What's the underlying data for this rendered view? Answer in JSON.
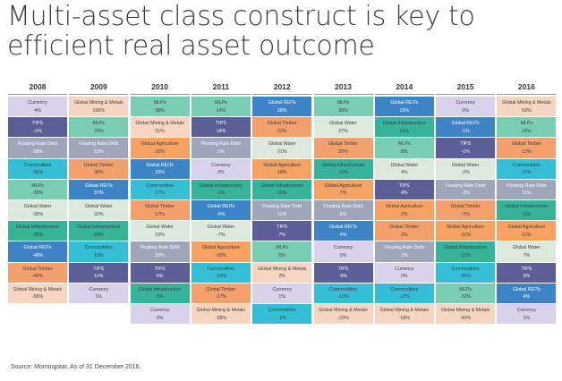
{
  "title": "Multi-asset class construct is key to efficient real asset outcome",
  "source": "Source: Morningstar. As of 31 December 2016.",
  "palette": {
    "Currency": "#d8d3ea",
    "Global Mining & Metals": "#f6d6c0",
    "TIPS": "#5c5f97",
    "Floating Rate Debt": "#9fa6b9",
    "Commodities": "#35bfd6",
    "MLPs": "#78cdb3",
    "Global Water": "#dde9dc",
    "Global Infrastructure": "#35b49a",
    "Global REITs": "#3c84c5",
    "Global Timber": "#f3a06d",
    "Global Agriculture": "#f5a262"
  },
  "chart_data": {
    "type": "table",
    "title": "Multi-asset class construct is key to efficient real asset outcome",
    "years": [
      "2008",
      "2009",
      "2010",
      "2011",
      "2012",
      "2013",
      "2014",
      "2015",
      "2016"
    ],
    "columns": [
      {
        "year": "2008",
        "cells": [
          {
            "name": "Currency",
            "value": "4%"
          },
          {
            "name": "TIPS",
            "value": "-2%"
          },
          {
            "name": "Floating Rate Debt",
            "value": "-28%"
          },
          {
            "name": "Commodities",
            "value": "-36%"
          },
          {
            "name": "MLPs",
            "value": "-39%"
          },
          {
            "name": "Global Water",
            "value": "-39%"
          },
          {
            "name": "Global Infrastructure",
            "value": "-39%"
          },
          {
            "name": "Global REITs",
            "value": "-48%"
          },
          {
            "name": "Global Timber",
            "value": "-49%"
          },
          {
            "name": "Global Mining & Metals",
            "value": "-58%"
          }
        ]
      },
      {
        "year": "2009",
        "cells": [
          {
            "name": "Global Mining & Metals",
            "value": "106%"
          },
          {
            "name": "MLPs",
            "value": "78%"
          },
          {
            "name": "Floating Rate Debt",
            "value": "52%"
          },
          {
            "name": "Global Timber",
            "value": "38%"
          },
          {
            "name": "Global REITs",
            "value": "37%"
          },
          {
            "name": "Global Water",
            "value": "32%"
          },
          {
            "name": "Global Infrastructure",
            "value": "24%"
          },
          {
            "name": "Commodities",
            "value": "19%"
          },
          {
            "name": "TIPS",
            "value": "11%"
          },
          {
            "name": "Currency",
            "value": "1%"
          }
        ]
      },
      {
        "year": "2010",
        "cells": [
          {
            "name": "MLPs",
            "value": "38%"
          },
          {
            "name": "Global Mining & Metals",
            "value": "31%"
          },
          {
            "name": "Global Agriculture",
            "value": "22%"
          },
          {
            "name": "Global REITs",
            "value": "20%"
          },
          {
            "name": "Commodities",
            "value": "17%"
          },
          {
            "name": "Global Timber",
            "value": "17%"
          },
          {
            "name": "Global Water",
            "value": "15%"
          },
          {
            "name": "Floating Rate Debt",
            "value": "10%"
          },
          {
            "name": "TIPS",
            "value": "6%"
          },
          {
            "name": "Global Infrastructure",
            "value": "5%"
          },
          {
            "name": "Currency",
            "value": "0%"
          }
        ]
      },
      {
        "year": "2011",
        "cells": [
          {
            "name": "MLPs",
            "value": "14%"
          },
          {
            "name": "TIPS",
            "value": "14%"
          },
          {
            "name": "Floating Rate Debt",
            "value": "1%"
          },
          {
            "name": "Currency",
            "value": "0%"
          },
          {
            "name": "Global Infrastructure",
            "value": "-1%"
          },
          {
            "name": "Global REITs",
            "value": "-6%"
          },
          {
            "name": "Global Water",
            "value": "-7%"
          },
          {
            "name": "Global Agriculture",
            "value": "-10%"
          },
          {
            "name": "Commodities",
            "value": "-13%"
          },
          {
            "name": "Global Timber",
            "value": "-17%"
          },
          {
            "name": "Global Mining & Metals",
            "value": "-28%"
          }
        ]
      },
      {
        "year": "2012",
        "cells": [
          {
            "name": "Global REITs",
            "value": "28%"
          },
          {
            "name": "Global Timber",
            "value": "22%"
          },
          {
            "name": "Global Water",
            "value": "21%"
          },
          {
            "name": "Global Agriculture",
            "value": "18%"
          },
          {
            "name": "Global Infrastructure",
            "value": "11%"
          },
          {
            "name": "Floating Rate Debt",
            "value": "11%"
          },
          {
            "name": "TIPS",
            "value": "7%"
          },
          {
            "name": "MLPs",
            "value": "5%"
          },
          {
            "name": "Global Mining & Metals",
            "value": "2%"
          },
          {
            "name": "Currency",
            "value": "1%"
          },
          {
            "name": "Commodities",
            "value": "-1%"
          }
        ]
      },
      {
        "year": "2013",
        "cells": [
          {
            "name": "MLPs",
            "value": "30%"
          },
          {
            "name": "Global Water",
            "value": "27%"
          },
          {
            "name": "Global Timber",
            "value": "20%"
          },
          {
            "name": "Global Infrastructure",
            "value": "16%"
          },
          {
            "name": "Global Agriculture",
            "value": "7%"
          },
          {
            "name": "Floating Rate Debt",
            "value": "5%"
          },
          {
            "name": "Global REITs",
            "value": "4%"
          },
          {
            "name": "Currency",
            "value": "0%"
          },
          {
            "name": "TIPS",
            "value": "-9%"
          },
          {
            "name": "Commodities",
            "value": "-10%"
          },
          {
            "name": "Global Mining & Metals",
            "value": "-23%"
          }
        ]
      },
      {
        "year": "2014",
        "cells": [
          {
            "name": "Global REITs",
            "value": "15%"
          },
          {
            "name": "Global Infrastructure",
            "value": "12%"
          },
          {
            "name": "MLPs",
            "value": "8%"
          },
          {
            "name": "Global Water",
            "value": "4%"
          },
          {
            "name": "TIPS",
            "value": "4%"
          },
          {
            "name": "Global Agriculture",
            "value": "2%"
          },
          {
            "name": "Global Timber",
            "value": "2%"
          },
          {
            "name": "Floating Rate Debt",
            "value": "1%"
          },
          {
            "name": "Currency",
            "value": "0%"
          },
          {
            "name": "Commodities",
            "value": "-17%"
          },
          {
            "name": "Global Mining & Metals",
            "value": "-18%"
          }
        ]
      },
      {
        "year": "2015",
        "cells": [
          {
            "name": "Currency",
            "value": "0%"
          },
          {
            "name": "Global REITs",
            "value": "-1%"
          },
          {
            "name": "TIPS",
            "value": "-1%"
          },
          {
            "name": "Global Water",
            "value": "-2%"
          },
          {
            "name": "Floating Rate Debt",
            "value": "-3%"
          },
          {
            "name": "Global Timber",
            "value": "-7%"
          },
          {
            "name": "Global Agriculture",
            "value": "-11%"
          },
          {
            "name": "Global Infrastructure",
            "value": "-12%"
          },
          {
            "name": "Commodities",
            "value": "-25%"
          },
          {
            "name": "MLPs",
            "value": "-32%"
          },
          {
            "name": "Global Mining & Metals",
            "value": "-40%"
          }
        ]
      },
      {
        "year": "2016",
        "cells": [
          {
            "name": "Global Mining & Metals",
            "value": "63%"
          },
          {
            "name": "MLPs",
            "value": "24%"
          },
          {
            "name": "Global Timber",
            "value": "13%"
          },
          {
            "name": "Commodities",
            "value": "12%"
          },
          {
            "name": "Floating Rate Debt",
            "value": "11%"
          },
          {
            "name": "Global Infrastructure",
            "value": "11%"
          },
          {
            "name": "Global Agriculture",
            "value": "11%"
          },
          {
            "name": "Global Water",
            "value": "7%"
          },
          {
            "name": "TIPS",
            "value": "5%"
          },
          {
            "name": "Global REITs",
            "value": "4%"
          },
          {
            "name": "Currency",
            "value": "1%"
          }
        ]
      }
    ]
  }
}
